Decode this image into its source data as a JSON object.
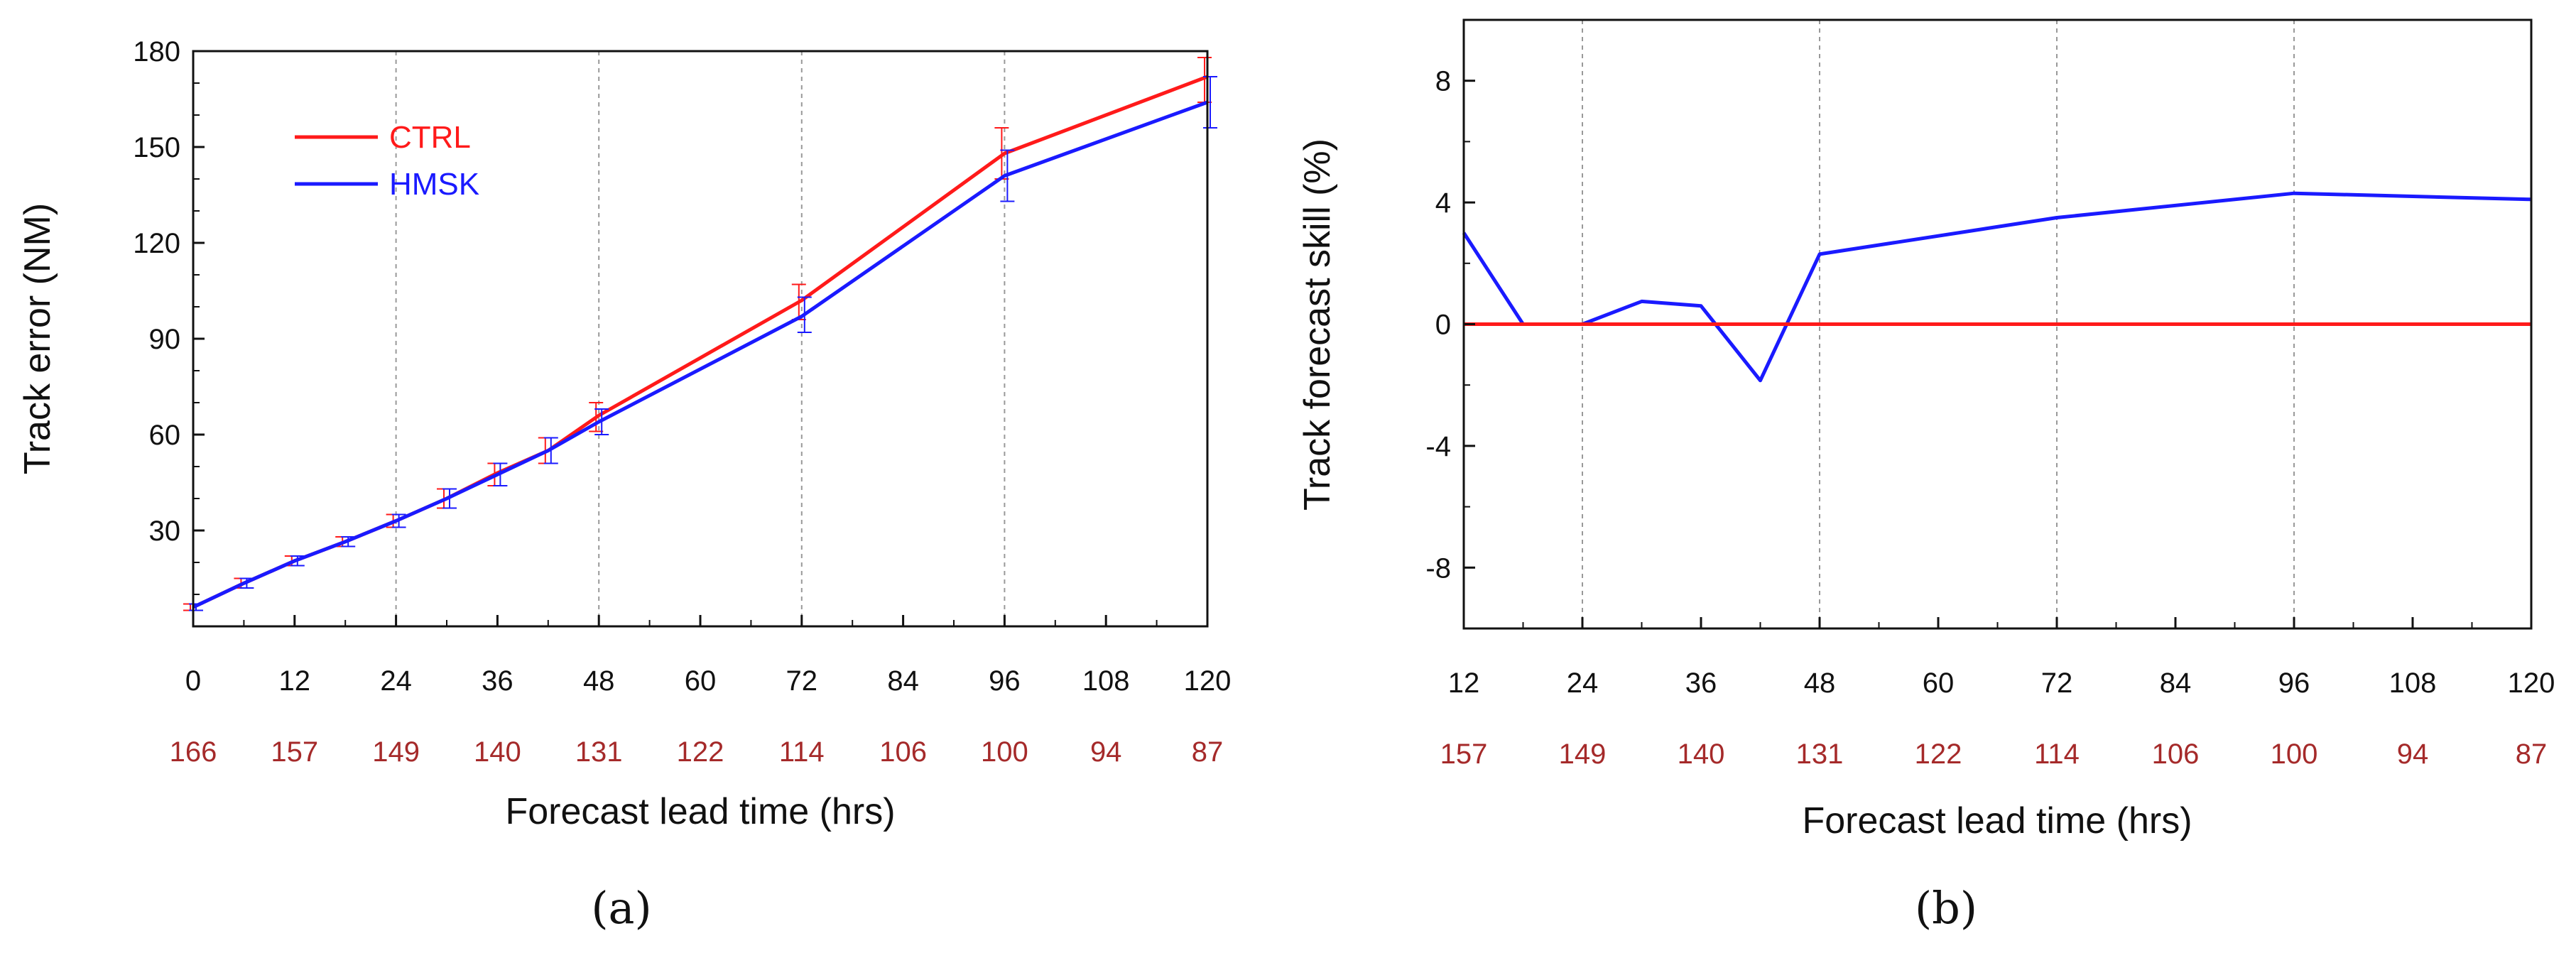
{
  "chart_data": [
    {
      "type": "line",
      "panel_label": "(a)",
      "ylabel": "Track error (NM)",
      "xlabel": "Forecast lead time (hrs)",
      "xlim": [
        0,
        120
      ],
      "ylim": [
        0,
        180
      ],
      "x_ticks": [
        0,
        12,
        24,
        36,
        48,
        60,
        72,
        84,
        96,
        108,
        120
      ],
      "x_tick_labels": [
        "0",
        "12",
        "24",
        "36",
        "48",
        "60",
        "72",
        "84",
        "96",
        "108",
        "120"
      ],
      "y_ticks": [
        30,
        60,
        90,
        120,
        150,
        180
      ],
      "y_tick_labels": [
        "30",
        "60",
        "90",
        "120",
        "150",
        "180"
      ],
      "case_counts": [
        "166",
        "157",
        "149",
        "140",
        "131",
        "122",
        "114",
        "106",
        "100",
        "94",
        "87"
      ],
      "vertical_gridlines_at": [
        24,
        48,
        72,
        96
      ],
      "legend": {
        "position": "top-left"
      },
      "series": [
        {
          "name": "CTRL",
          "color": "#ff1a1a",
          "x": [
            0,
            6,
            12,
            18,
            24,
            30,
            36,
            42,
            48,
            72,
            96,
            120
          ],
          "values": [
            6,
            13.5,
            20.5,
            26.5,
            33,
            40,
            48,
            55,
            66,
            102,
            148,
            172
          ],
          "err_low": [
            5,
            12,
            19,
            25,
            31,
            37,
            44,
            51,
            61,
            96,
            140,
            164
          ],
          "err_high": [
            7,
            15,
            22,
            28,
            35,
            43,
            51,
            59,
            70,
            107,
            156,
            178
          ]
        },
        {
          "name": "HMSK",
          "color": "#1a1aff",
          "x": [
            0,
            6,
            12,
            18,
            24,
            30,
            36,
            42,
            48,
            72,
            96,
            120
          ],
          "values": [
            6,
            13.5,
            20.5,
            26.5,
            33,
            40,
            47.5,
            55,
            64,
            97,
            141,
            164
          ],
          "err_low": [
            5,
            12,
            19,
            25,
            31,
            37,
            44,
            51,
            60,
            92,
            133,
            156
          ],
          "err_high": [
            7,
            15,
            22,
            28,
            35,
            43,
            51,
            59,
            68,
            103,
            149,
            172
          ]
        }
      ]
    },
    {
      "type": "line",
      "panel_label": "(b)",
      "ylabel": "Track forecast skill (%)",
      "xlabel": "Forecast lead time (hrs)",
      "xlim": [
        12,
        120
      ],
      "ylim": [
        -10,
        10
      ],
      "x_ticks": [
        12,
        24,
        36,
        48,
        60,
        72,
        84,
        96,
        108,
        120
      ],
      "x_tick_labels": [
        "12",
        "24",
        "36",
        "48",
        "60",
        "72",
        "84",
        "96",
        "108",
        "120"
      ],
      "y_ticks": [
        -8,
        -4,
        0,
        4,
        8
      ],
      "y_tick_labels": [
        "-8",
        "-4",
        "0",
        "4",
        "8"
      ],
      "case_counts": [
        "157",
        "149",
        "140",
        "131",
        "122",
        "114",
        "106",
        "100",
        "94",
        "87"
      ],
      "vertical_gridlines_at": [
        24,
        48,
        72,
        96
      ],
      "series": [
        {
          "name": "skill",
          "color": "#1a1aff",
          "x": [
            12,
            18,
            24,
            30,
            36,
            42,
            48,
            72,
            96,
            120
          ],
          "values": [
            3,
            0,
            0,
            0.75,
            0.6,
            -1.85,
            2.3,
            3.5,
            4.3,
            4.1
          ]
        },
        {
          "name": "zero",
          "color": "#ff1a1a",
          "x": [
            12,
            120
          ],
          "values": [
            0,
            0
          ]
        }
      ]
    }
  ]
}
